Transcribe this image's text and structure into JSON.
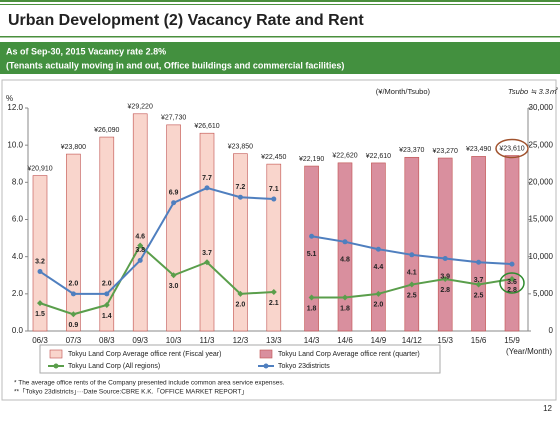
{
  "chart_data": {
    "type": "bar",
    "title": "Urban Development (2) Vacancy Rate and Rent",
    "subtitle": [
      "As of Sep-30, 2015 Vacancy rate 2.8%",
      "(Tenants actually moving in and out, Office buildings and commercial facilities)"
    ],
    "y_unit": "%",
    "y2_unit": "(¥/Month/Tsubo)",
    "tsubo_note": "Tsubo ≒ 3.3㎡",
    "x_unit": "(Year/Month)",
    "categories": [
      "06/3",
      "07/3",
      "08/3",
      "09/3",
      "10/3",
      "11/3",
      "12/3",
      "13/3",
      null,
      "14/3",
      "14/6",
      "14/9",
      "14/12",
      "15/3",
      "15/6",
      "15/9"
    ],
    "ylim": [
      0,
      12
    ],
    "yticks": [
      {
        "value": 0,
        "label": "0.0"
      },
      {
        "value": 2,
        "label": "2.0"
      },
      {
        "value": 4,
        "label": "4.0"
      },
      {
        "value": 6,
        "label": "6.0"
      },
      {
        "value": 8,
        "label": "8.0"
      },
      {
        "value": 10,
        "label": "10.0"
      },
      {
        "value": 12,
        "label": "12.0"
      }
    ],
    "y2lim": [
      0,
      30000
    ],
    "y2ticks": [
      0,
      {
        "value": 5000,
        "label": "5,000"
      },
      {
        "value": 10000,
        "label": "10,000"
      },
      {
        "value": 15000,
        "label": "15,000"
      },
      {
        "value": 20000,
        "label": "20,000"
      },
      {
        "value": 25000,
        "label": "25,000"
      },
      {
        "value": 30000,
        "label": "30,000"
      }
    ],
    "grid": false,
    "series": [
      {
        "name": "Tokyu Land Corp Average office rent (Fiscal year)",
        "type": "bar",
        "axis": "y2",
        "color": "#f9d5cc",
        "values": [
          20910,
          23800,
          26090,
          29220,
          27730,
          26610,
          23850,
          22450,
          null,
          null,
          null,
          null,
          null,
          null,
          null,
          null
        ],
        "value_labels": [
          "¥20,910",
          "¥23,800",
          "¥26,090",
          "¥29,220",
          "¥27,730",
          "¥26,610",
          "¥23,850",
          "¥22,450",
          null,
          null,
          null,
          null,
          null,
          null,
          null,
          null
        ]
      },
      {
        "name": "Tokyu Land Corp Average office rent (quarter)",
        "type": "bar",
        "axis": "y2",
        "color": "#d98f9e",
        "values": [
          null,
          null,
          null,
          null,
          null,
          null,
          null,
          null,
          null,
          22190,
          22620,
          22610,
          23370,
          23270,
          23490,
          23610
        ],
        "value_labels": [
          null,
          null,
          null,
          null,
          null,
          null,
          null,
          null,
          null,
          "¥22,190",
          "¥22,620",
          "¥22,610",
          "¥23,370",
          "¥23,270",
          "¥23,490",
          "¥23,610"
        ]
      },
      {
        "name": "Tokyu Land Corp (All regions)",
        "type": "line",
        "axis": "y",
        "color": "#5a9e4b",
        "values": [
          1.5,
          0.9,
          1.4,
          4.6,
          3.0,
          3.7,
          2.0,
          2.1,
          null,
          1.8,
          1.8,
          2.0,
          2.5,
          2.8,
          2.5,
          2.8
        ],
        "value_labels": [
          "1.5",
          "0.9",
          "1.4",
          "4.6",
          "3.0",
          "3.7",
          "2.0",
          "2.1",
          null,
          "1.8",
          "1.8",
          "2.0",
          "2.5",
          "2.8",
          "2.5",
          "2.8"
        ]
      },
      {
        "name": "Tokyo 23districts",
        "type": "line",
        "axis": "y",
        "color": "#4f7fbf",
        "values": [
          3.2,
          2.0,
          2.0,
          3.8,
          6.9,
          7.7,
          7.2,
          7.1,
          null,
          5.1,
          4.8,
          4.4,
          4.1,
          3.9,
          3.7,
          3.6
        ],
        "value_labels": [
          "3.2",
          "2.0",
          "2.0",
          "3.8",
          "6.9",
          "7.7",
          "7.2",
          "7.1",
          null,
          "5.1",
          "4.8",
          "4.4",
          "4.1",
          "3.9",
          "3.7",
          "3.6"
        ]
      }
    ],
    "notes": [
      "* The average office rents of the Company presented include common area service expenses.",
      "**「Tokyo 23districts」···Date Source:CBRE K.K.「OFFICE MARKET REPORT」"
    ],
    "page_number": "12"
  }
}
